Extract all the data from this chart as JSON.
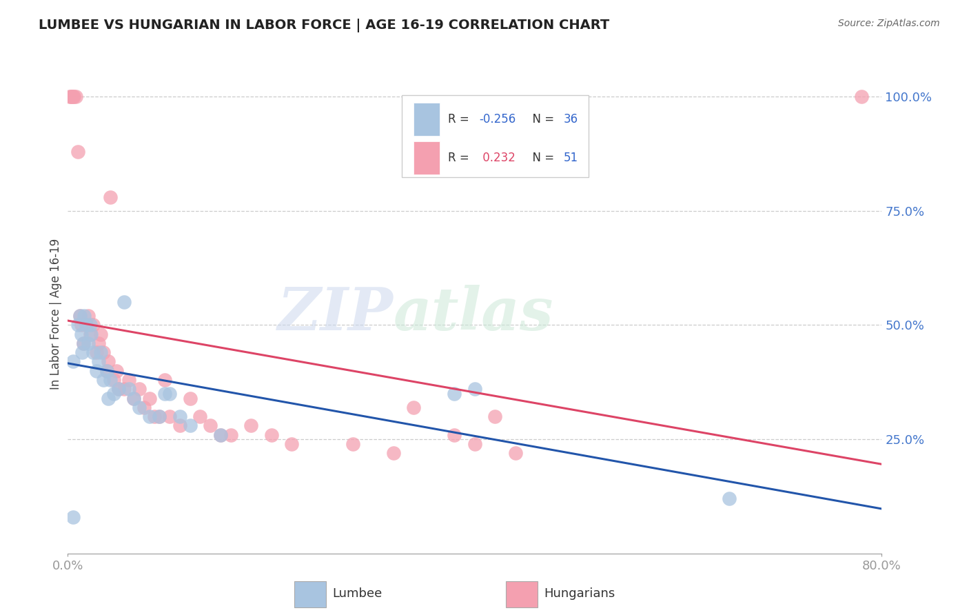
{
  "title": "LUMBEE VS HUNGARIAN IN LABOR FORCE | AGE 16-19 CORRELATION CHART",
  "source": "Source: ZipAtlas.com",
  "ylabel": "In Labor Force | Age 16-19",
  "watermark_zip": "ZIP",
  "watermark_atlas": "atlas",
  "xlim": [
    0.0,
    0.8
  ],
  "ylim": [
    0.0,
    1.05
  ],
  "lumbee_color": "#a8c4e0",
  "lumbee_edge_color": "#7aaad0",
  "hungarian_color": "#f4a0b0",
  "hungarian_edge_color": "#e07090",
  "lumbee_line_color": "#2255aa",
  "hungarian_line_color": "#dd4466",
  "lumbee_R": -0.256,
  "lumbee_N": 36,
  "hungarian_R": 0.232,
  "hungarian_N": 51,
  "grid_color": "#cccccc",
  "ytick_color": "#4477cc",
  "xtick_color": "#4477cc",
  "lumbee_x": [
    0.005,
    0.005,
    0.01,
    0.012,
    0.013,
    0.014,
    0.015,
    0.016,
    0.018,
    0.02,
    0.022,
    0.023,
    0.025,
    0.028,
    0.03,
    0.032,
    0.035,
    0.038,
    0.04,
    0.042,
    0.045,
    0.05,
    0.055,
    0.06,
    0.065,
    0.07,
    0.08,
    0.09,
    0.095,
    0.1,
    0.11,
    0.12,
    0.15,
    0.38,
    0.4,
    0.65
  ],
  "lumbee_y": [
    0.42,
    0.08,
    0.5,
    0.52,
    0.48,
    0.44,
    0.46,
    0.52,
    0.5,
    0.46,
    0.5,
    0.48,
    0.44,
    0.4,
    0.42,
    0.44,
    0.38,
    0.4,
    0.34,
    0.38,
    0.35,
    0.36,
    0.55,
    0.36,
    0.34,
    0.32,
    0.3,
    0.3,
    0.35,
    0.35,
    0.3,
    0.28,
    0.26,
    0.35,
    0.36,
    0.12
  ],
  "hungarian_x": [
    0.002,
    0.003,
    0.004,
    0.005,
    0.006,
    0.008,
    0.01,
    0.012,
    0.013,
    0.015,
    0.018,
    0.02,
    0.022,
    0.025,
    0.028,
    0.03,
    0.032,
    0.035,
    0.038,
    0.04,
    0.042,
    0.045,
    0.048,
    0.05,
    0.055,
    0.06,
    0.065,
    0.07,
    0.075,
    0.08,
    0.085,
    0.09,
    0.095,
    0.1,
    0.11,
    0.12,
    0.13,
    0.14,
    0.15,
    0.16,
    0.18,
    0.2,
    0.22,
    0.28,
    0.32,
    0.34,
    0.38,
    0.4,
    0.42,
    0.44,
    0.78
  ],
  "hungarian_y": [
    1.0,
    1.0,
    1.0,
    1.0,
    1.0,
    1.0,
    0.88,
    0.52,
    0.5,
    0.46,
    0.5,
    0.52,
    0.48,
    0.5,
    0.44,
    0.46,
    0.48,
    0.44,
    0.4,
    0.42,
    0.78,
    0.38,
    0.4,
    0.36,
    0.36,
    0.38,
    0.34,
    0.36,
    0.32,
    0.34,
    0.3,
    0.3,
    0.38,
    0.3,
    0.28,
    0.34,
    0.3,
    0.28,
    0.26,
    0.26,
    0.28,
    0.26,
    0.24,
    0.24,
    0.22,
    0.32,
    0.26,
    0.24,
    0.3,
    0.22,
    1.0
  ]
}
